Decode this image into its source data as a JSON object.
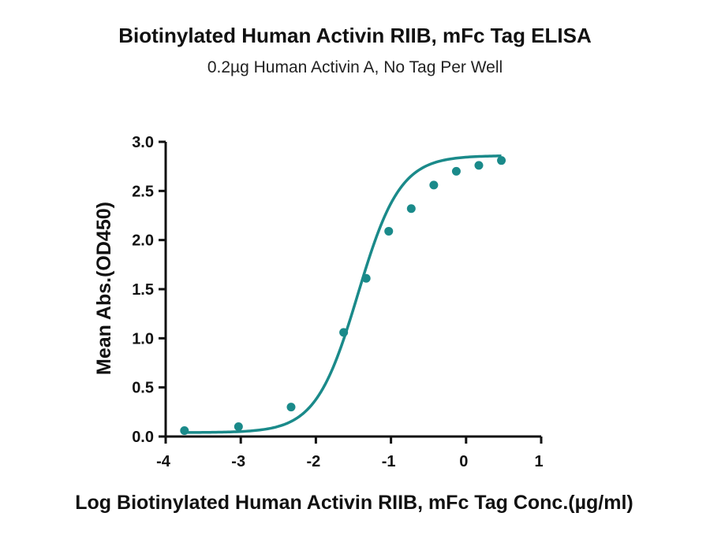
{
  "chart_data": {
    "type": "scatter",
    "title": "Biotinylated Human Activin RIIB, mFc Tag ELISA",
    "subtitle": "0.2µg Human Activin A, No Tag Per Well",
    "xlabel": "Log Biotinylated Human Activin RIIB, mFc Tag Conc.(µg/ml)",
    "ylabel": "Mean Abs.(OD450)",
    "xlim": [
      -4,
      1
    ],
    "ylim": [
      0,
      3
    ],
    "xticks": [
      -4,
      -3,
      -2,
      -1,
      0,
      1
    ],
    "yticks": [
      0.0,
      0.5,
      1.0,
      1.5,
      2.0,
      2.5,
      3.0
    ],
    "xtick_labels": [
      "-4",
      "-3",
      "-2",
      "-1",
      "0",
      "1"
    ],
    "ytick_labels": [
      "0.0",
      "0.5",
      "1.0",
      "1.5",
      "2.0",
      "2.5",
      "3.0"
    ],
    "grid": false,
    "color": "#1a8a8a",
    "series": [
      {
        "x": [
          -3.75,
          -3.03,
          -2.33,
          -1.63,
          -1.33,
          -1.03,
          -0.73,
          -0.43,
          -0.13,
          0.17,
          0.47
        ],
        "y": [
          0.06,
          0.1,
          0.3,
          1.06,
          1.61,
          2.09,
          2.32,
          2.56,
          2.7,
          2.76,
          2.81
        ],
        "fit": "four-parameter logistic"
      }
    ]
  }
}
